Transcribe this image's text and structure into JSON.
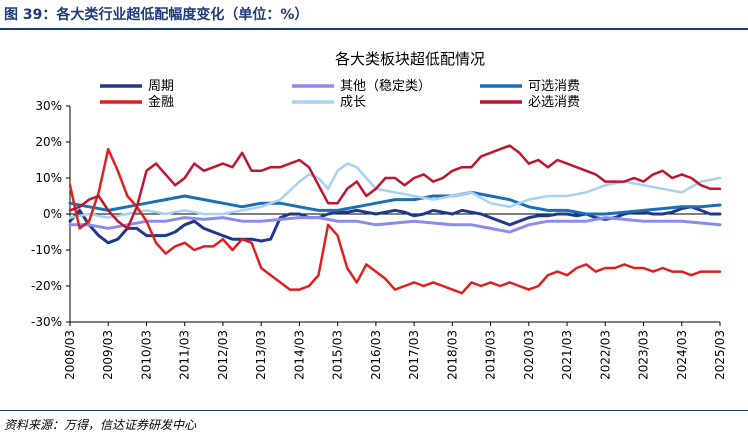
{
  "figure_title": "图 39：各大类行业超低配幅度变化（单位：%）",
  "source": "资料来源：万得，信达证券研发中心",
  "chart_data": {
    "type": "line",
    "title": "各大类板块超低配情况",
    "xlabel": "",
    "ylabel": "",
    "ylim": [
      -30,
      30
    ],
    "yticks": [
      "30%",
      "20%",
      "10%",
      "0%",
      "-10%",
      "-20%",
      "-30%"
    ],
    "xticks": [
      "2008/03",
      "2009/03",
      "2010/03",
      "2011/03",
      "2012/03",
      "2013/03",
      "2014/03",
      "2015/03",
      "2016/03",
      "2017/03",
      "2018/03",
      "2019/03",
      "2020/03",
      "2021/03",
      "2022/03",
      "2023/03",
      "2024/03",
      "2025/03"
    ],
    "x_start": 2008.0,
    "x_end": 2025.0,
    "grid": false,
    "legend_position": "top",
    "series": [
      {
        "name": "周期",
        "color": "#1f3a8a",
        "width": 3,
        "x": [
          2008,
          2008.25,
          2008.5,
          2008.75,
          2009,
          2009.25,
          2009.5,
          2009.75,
          2010,
          2010.25,
          2010.5,
          2010.75,
          2011,
          2011.25,
          2011.5,
          2011.75,
          2012,
          2012.25,
          2012.5,
          2012.75,
          2013,
          2013.25,
          2013.5,
          2013.75,
          2014,
          2014.25,
          2014.5,
          2014.75,
          2015,
          2015.25,
          2015.5,
          2015.75,
          2016,
          2016.25,
          2016.5,
          2016.75,
          2017,
          2017.25,
          2017.5,
          2017.75,
          2018,
          2018.25,
          2018.5,
          2018.75,
          2019,
          2019.25,
          2019.5,
          2019.75,
          2020,
          2020.25,
          2020.5,
          2020.75,
          2021,
          2021.25,
          2021.5,
          2021.75,
          2022,
          2022.25,
          2022.5,
          2022.75,
          2023,
          2023.25,
          2023.5,
          2023.75,
          2024,
          2024.25,
          2024.5,
          2024.75,
          2025
        ],
        "y": [
          -2,
          1,
          -3,
          -6,
          -8,
          -7,
          -4,
          -4,
          -6,
          -6,
          -6,
          -5,
          -3,
          -2,
          -4,
          -5,
          -6,
          -7,
          -7,
          -7,
          -7.5,
          -7,
          -1,
          0,
          0,
          -1,
          -1,
          0,
          0.5,
          0.5,
          1,
          0.5,
          0,
          0.5,
          1,
          0.5,
          -0.5,
          0,
          1,
          0.5,
          0,
          1,
          0.5,
          0,
          -1,
          -2,
          -3,
          -2,
          -1,
          -0.5,
          -0.5,
          0,
          0,
          -0.5,
          0,
          -1,
          -1.5,
          -1,
          0,
          0.5,
          0.5,
          0,
          0,
          0.5,
          1.5,
          2,
          1,
          0,
          0
        ]
      },
      {
        "name": "其他（稳定类）",
        "color": "#8c8cf0",
        "width": 3,
        "x": [
          2008,
          2008.5,
          2009,
          2009.5,
          2010,
          2010.5,
          2011,
          2011.5,
          2012,
          2012.5,
          2013,
          2013.5,
          2014,
          2014.5,
          2015,
          2015.5,
          2016,
          2016.5,
          2017,
          2017.5,
          2018,
          2018.5,
          2019,
          2019.5,
          2020,
          2020.5,
          2021,
          2021.5,
          2022,
          2022.5,
          2023,
          2023.5,
          2024,
          2024.5,
          2025
        ],
        "y": [
          -3,
          -3,
          -4,
          -3,
          -2,
          -2,
          -1,
          -1.5,
          -1,
          -2,
          -2,
          -1.5,
          -1,
          -1,
          -2,
          -2,
          -3,
          -2.5,
          -2,
          -2.5,
          -3,
          -3,
          -4,
          -5,
          -3,
          -2,
          -2,
          -2,
          -1,
          -1.5,
          -2,
          -2,
          -2,
          -2.5,
          -3
        ]
      },
      {
        "name": "可选消费",
        "color": "#1a6fb5",
        "width": 3,
        "x": [
          2008,
          2008.5,
          2009,
          2009.5,
          2010,
          2010.5,
          2011,
          2011.5,
          2012,
          2012.5,
          2013,
          2013.5,
          2014,
          2014.5,
          2015,
          2015.5,
          2016,
          2016.5,
          2017,
          2017.5,
          2018,
          2018.5,
          2019,
          2019.5,
          2020,
          2020.5,
          2021,
          2021.5,
          2022,
          2022.5,
          2023,
          2023.5,
          2024,
          2024.5,
          2025
        ],
        "y": [
          3,
          2,
          1,
          2,
          3,
          4,
          5,
          4,
          3,
          2,
          3,
          3,
          2,
          1,
          1,
          2,
          3,
          4,
          4,
          5,
          5,
          6,
          5,
          4,
          2,
          1,
          1,
          0,
          0,
          0.5,
          1,
          1.5,
          2,
          2,
          2.5
        ]
      },
      {
        "name": "成长",
        "color": "#a9d2f2",
        "width": 2.5,
        "x": [
          2008,
          2008.5,
          2009,
          2009.5,
          2010,
          2010.5,
          2011,
          2011.5,
          2012,
          2012.5,
          2013,
          2013.5,
          2014,
          2014.25,
          2014.5,
          2014.75,
          2015,
          2015.25,
          2015.5,
          2015.75,
          2016,
          2016.5,
          2017,
          2017.5,
          2018,
          2018.5,
          2019,
          2019.5,
          2020,
          2020.5,
          2021,
          2021.5,
          2022,
          2022.5,
          2023,
          2023.5,
          2024,
          2024.5,
          2025
        ],
        "y": [
          -1,
          0,
          -1,
          0,
          1,
          0,
          1,
          0,
          0,
          1,
          2,
          4,
          9,
          11,
          10,
          7,
          12,
          14,
          13,
          10,
          7,
          6,
          5,
          4,
          5,
          6,
          3,
          2,
          4,
          5,
          5,
          6,
          8,
          9,
          8,
          7,
          6,
          9,
          10
        ]
      },
      {
        "name": "金融",
        "color": "#e02020",
        "width": 2.5,
        "x": [
          2008,
          2008.25,
          2008.5,
          2008.75,
          2009,
          2009.25,
          2009.5,
          2009.75,
          2010,
          2010.25,
          2010.5,
          2010.75,
          2011,
          2011.25,
          2011.5,
          2011.75,
          2012,
          2012.25,
          2012.5,
          2012.75,
          2013,
          2013.25,
          2013.5,
          2013.75,
          2014,
          2014.25,
          2014.5,
          2014.75,
          2015,
          2015.25,
          2015.5,
          2015.75,
          2016,
          2016.25,
          2016.5,
          2016.75,
          2017,
          2017.25,
          2017.5,
          2017.75,
          2018,
          2018.25,
          2018.5,
          2018.75,
          2019,
          2019.25,
          2019.5,
          2019.75,
          2020,
          2020.25,
          2020.5,
          2020.75,
          2021,
          2021.25,
          2021.5,
          2021.75,
          2022,
          2022.25,
          2022.5,
          2022.75,
          2023,
          2023.25,
          2023.5,
          2023.75,
          2024,
          2024.25,
          2024.5,
          2024.75,
          2025
        ],
        "y": [
          8,
          -4,
          -2,
          6,
          18,
          12,
          5,
          2,
          -2,
          -8,
          -11,
          -9,
          -8,
          -10,
          -9,
          -9,
          -7,
          -10,
          -7,
          -8,
          -15,
          -17,
          -19,
          -21,
          -21,
          -20,
          -17,
          -3,
          -6,
          -15,
          -19,
          -14,
          -16,
          -18,
          -21,
          -20,
          -19,
          -20,
          -19,
          -20,
          -21,
          -22,
          -19,
          -20,
          -19,
          -20,
          -19,
          -20,
          -21,
          -20,
          -17,
          -16,
          -17,
          -15,
          -14,
          -16,
          -15,
          -15,
          -14,
          -15,
          -15,
          -16,
          -15,
          -16,
          -16,
          -17,
          -16,
          -16,
          -16
        ]
      },
      {
        "name": "必选消费",
        "color": "#c0152f",
        "width": 2.5,
        "x": [
          2008,
          2008.25,
          2008.5,
          2008.75,
          2009,
          2009.25,
          2009.5,
          2009.75,
          2010,
          2010.25,
          2010.5,
          2010.75,
          2011,
          2011.25,
          2011.5,
          2011.75,
          2012,
          2012.25,
          2012.5,
          2012.75,
          2013,
          2013.25,
          2013.5,
          2013.75,
          2014,
          2014.25,
          2014.5,
          2014.75,
          2015,
          2015.25,
          2015.5,
          2015.75,
          2016,
          2016.25,
          2016.5,
          2016.75,
          2017,
          2017.25,
          2017.5,
          2017.75,
          2018,
          2018.25,
          2018.5,
          2018.75,
          2019,
          2019.25,
          2019.5,
          2019.75,
          2020,
          2020.25,
          2020.5,
          2020.75,
          2021,
          2021.25,
          2021.5,
          2021.75,
          2022,
          2022.25,
          2022.5,
          2022.75,
          2023,
          2023.25,
          2023.5,
          2023.75,
          2024,
          2024.25,
          2024.5,
          2024.75,
          2025
        ],
        "y": [
          1,
          2,
          4,
          5,
          1,
          -2,
          -4,
          2,
          12,
          14,
          11,
          8,
          10,
          14,
          12,
          13,
          14,
          13,
          17,
          12,
          12,
          13,
          13,
          14,
          15,
          13,
          8,
          3,
          3,
          7,
          9,
          5,
          7,
          10,
          10,
          8,
          10,
          11,
          9,
          10,
          12,
          13,
          13,
          16,
          17,
          18,
          19,
          17,
          14,
          15,
          13,
          15,
          14,
          13,
          12,
          11,
          9,
          9,
          9,
          10,
          9,
          11,
          12,
          10,
          11,
          10,
          8,
          7,
          7
        ]
      }
    ]
  }
}
